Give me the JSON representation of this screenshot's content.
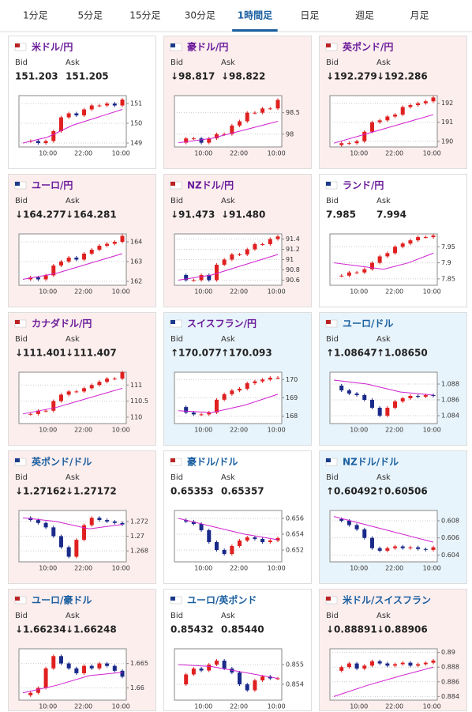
{
  "tabs": [
    "1分足",
    "5分足",
    "15分足",
    "30分足",
    "1時間足",
    "日足",
    "週足",
    "月足"
  ],
  "active_tab": 4,
  "bid_label": "Bid",
  "ask_label": "Ask",
  "time_labels": [
    "10:00",
    "22:00",
    "10:00"
  ],
  "cards": [
    {
      "name": "米ドル/円",
      "bid": "151.203",
      "ask": "151.205",
      "color": "#ffffff",
      "name_color": "#6a1b9a",
      "ylim": [
        148.8,
        151.4
      ],
      "yticks": [
        149,
        150,
        151
      ],
      "closes": [
        149.1,
        149.1,
        149.0,
        149.1,
        149.6,
        150.3,
        150.5,
        150.4,
        150.7,
        150.9,
        150.9,
        151.0,
        150.9,
        151.2
      ],
      "ma": [
        149.0,
        149.3,
        149.9,
        150.3,
        150.7
      ]
    },
    {
      "name": "豪ドル/円",
      "bid": "↓98.817",
      "ask": "↓98.822",
      "color": "#fdeeee",
      "name_color": "#6a1b9a",
      "ylim": [
        97.7,
        98.9
      ],
      "yticks": [
        98,
        98.5
      ],
      "closes": [
        97.8,
        97.9,
        97.9,
        97.8,
        97.9,
        98.0,
        98.0,
        98.2,
        98.3,
        98.5,
        98.5,
        98.6,
        98.6,
        98.8
      ],
      "ma": [
        97.8,
        97.9,
        98.1,
        98.3
      ]
    },
    {
      "name": "英ポンド/円",
      "bid": "↓192.279",
      "ask": "↓192.286",
      "color": "#fdeeee",
      "name_color": "#6a1b9a",
      "ylim": [
        189.7,
        192.4
      ],
      "yticks": [
        190,
        191,
        192
      ],
      "closes": [
        189.8,
        189.9,
        189.9,
        190.0,
        190.5,
        191.0,
        191.1,
        191.3,
        191.4,
        191.8,
        191.9,
        192.0,
        192.1,
        192.3
      ],
      "ma": [
        189.9,
        190.4,
        190.9,
        191.4
      ]
    },
    {
      "name": "ユーロ/円",
      "bid": "↓164.277",
      "ask": "↓164.281",
      "color": "#fdeeee",
      "name_color": "#6a1b9a",
      "ylim": [
        161.8,
        164.4
      ],
      "yticks": [
        162,
        163,
        164
      ],
      "closes": [
        162.1,
        162.2,
        162.1,
        162.3,
        162.8,
        163.0,
        163.2,
        163.1,
        163.4,
        163.6,
        163.8,
        163.9,
        164.0,
        164.3
      ],
      "ma": [
        162.1,
        162.4,
        162.9,
        163.4
      ]
    },
    {
      "name": "NZドル/円",
      "bid": "↓91.473",
      "ask": "↓91.480",
      "color": "#fdeeee",
      "name_color": "#6a1b9a",
      "ylim": [
        90.5,
        91.5
      ],
      "yticks": [
        90.6,
        90.8,
        91,
        91.2,
        91.4
      ],
      "closes": [
        90.7,
        90.6,
        90.6,
        90.7,
        90.6,
        90.9,
        91.0,
        91.1,
        91.1,
        91.2,
        91.3,
        91.3,
        91.4,
        91.45
      ],
      "ma": [
        90.6,
        90.7,
        90.9,
        91.1
      ]
    },
    {
      "name": "ランド/円",
      "bid": "7.985",
      "ask": "7.994",
      "color": "#ffffff",
      "name_color": "#6a1b9a",
      "ylim": [
        7.83,
        7.99
      ],
      "yticks": [
        7.85,
        7.9,
        7.95
      ],
      "closes": [
        7.86,
        7.86,
        7.87,
        7.87,
        7.88,
        7.9,
        7.92,
        7.93,
        7.95,
        7.96,
        7.97,
        7.98,
        7.98,
        7.985
      ],
      "ma": [
        7.9,
        7.89,
        7.88,
        7.9,
        7.93
      ]
    },
    {
      "name": "カナダドル/円",
      "bid": "↓111.401",
      "ask": "↓111.407",
      "color": "#fdeeee",
      "name_color": "#6a1b9a",
      "ylim": [
        109.8,
        111.4
      ],
      "yticks": [
        110,
        110.5,
        111
      ],
      "closes": [
        110.1,
        110.1,
        110.2,
        110.2,
        110.5,
        110.7,
        110.8,
        110.8,
        110.9,
        111.0,
        111.1,
        111.2,
        111.2,
        111.4
      ],
      "ma": [
        110.1,
        110.3,
        110.6,
        110.9
      ]
    },
    {
      "name": "スイスフラン/円",
      "bid": "↑170.077",
      "ask": "↑170.093",
      "color": "#e8f4fb",
      "name_color": "#6a1b9a",
      "ylim": [
        167.6,
        170.4
      ],
      "yticks": [
        168,
        169,
        170
      ],
      "closes": [
        168.5,
        168.2,
        168.1,
        168.1,
        168.2,
        168.9,
        169.2,
        169.4,
        169.5,
        169.8,
        169.9,
        170.0,
        170.1,
        170.1
      ],
      "ma": [
        168.3,
        168.2,
        168.6,
        169.2
      ]
    },
    {
      "name": "ユーロ/ドル",
      "bid": "↑1.08647",
      "ask": "↑1.08650",
      "color": "#e8f4fb",
      "name_color": "#1a5fa0",
      "ylim": [
        1.083,
        1.0895
      ],
      "yticks": [
        1.084,
        1.086,
        1.088
      ],
      "closes": [
        1.0878,
        1.0872,
        1.0868,
        1.0866,
        1.086,
        1.085,
        1.084,
        1.085,
        1.0858,
        1.0862,
        1.0865,
        1.0864,
        1.0866,
        1.0865
      ],
      "ma": [
        1.0885,
        1.088,
        1.087,
        1.0866
      ]
    },
    {
      "name": "英ポンド/ドル",
      "bid": "↓1.27162",
      "ask": "↓1.27172",
      "color": "#fdeeee",
      "name_color": "#1a5fa0",
      "ylim": [
        1.2665,
        1.2735
      ],
      "yticks": [
        1.268,
        1.27,
        1.272
      ],
      "closes": [
        1.2725,
        1.2722,
        1.2718,
        1.2712,
        1.27,
        1.2685,
        1.2672,
        1.2695,
        1.2715,
        1.2725,
        1.2722,
        1.272,
        1.2718,
        1.2716
      ],
      "ma": [
        1.2725,
        1.272,
        1.271,
        1.2716
      ]
    },
    {
      "name": "豪ドル/ドル",
      "bid": "0.65353",
      "ask": "0.65357",
      "color": "#ffffff",
      "name_color": "#1a5fa0",
      "ylim": [
        0.6505,
        0.657
      ],
      "yticks": [
        0.652,
        0.654,
        0.656
      ],
      "closes": [
        0.6558,
        0.6556,
        0.6553,
        0.6545,
        0.653,
        0.652,
        0.6515,
        0.6525,
        0.6532,
        0.6536,
        0.6534,
        0.653,
        0.6532,
        0.6535
      ],
      "ma": [
        0.656,
        0.655,
        0.654,
        0.6533
      ]
    },
    {
      "name": "NZドル/ドル",
      "bid": "↑0.60492",
      "ask": "↑0.60506",
      "color": "#e8f4fb",
      "name_color": "#1a5fa0",
      "ylim": [
        0.6032,
        0.6092
      ],
      "yticks": [
        0.604,
        0.606,
        0.608
      ],
      "closes": [
        0.6082,
        0.608,
        0.6075,
        0.607,
        0.606,
        0.6048,
        0.6045,
        0.6048,
        0.605,
        0.6048,
        0.6049,
        0.6047,
        0.6046,
        0.6049
      ],
      "ma": [
        0.6085,
        0.6075,
        0.6065,
        0.6055
      ]
    },
    {
      "name": "ユーロ/豪ドル",
      "bid": "↓1.66234",
      "ask": "↓1.66248",
      "color": "#fdeeee",
      "name_color": "#1a5fa0",
      "ylim": [
        1.6575,
        1.668
      ],
      "yticks": [
        1.66,
        1.665
      ],
      "closes": [
        1.6585,
        1.659,
        1.66,
        1.664,
        1.6665,
        1.665,
        1.664,
        1.663,
        1.6645,
        1.664,
        1.665,
        1.6645,
        1.6635,
        1.6623
      ],
      "ma": [
        1.659,
        1.6605,
        1.6625,
        1.6632
      ]
    },
    {
      "name": "ユーロ/英ポンド",
      "bid": "0.85432",
      "ask": "0.85440",
      "color": "#ffffff",
      "name_color": "#1a5fa0",
      "ylim": [
        0.8532,
        0.8558
      ],
      "yticks": [
        0.854,
        0.855
      ],
      "closes": [
        0.854,
        0.8545,
        0.8548,
        0.8547,
        0.855,
        0.8552,
        0.8548,
        0.8546,
        0.854,
        0.8537,
        0.8542,
        0.8544,
        0.8543,
        0.8543
      ],
      "ma": [
        0.855,
        0.8549,
        0.8546,
        0.8543
      ]
    },
    {
      "name": "米ドル/スイスフラン",
      "bid": "↓0.88891",
      "ask": "↓0.88906",
      "color": "#fdeeee",
      "name_color": "#1a5fa0",
      "ylim": [
        0.8835,
        0.8905
      ],
      "yticks": [
        0.884,
        0.886,
        0.888,
        0.89
      ],
      "closes": [
        0.8875,
        0.888,
        0.8885,
        0.8878,
        0.8882,
        0.8888,
        0.8885,
        0.8882,
        0.8884,
        0.8886,
        0.8882,
        0.8884,
        0.8886,
        0.8889
      ],
      "ma": [
        0.884,
        0.8855,
        0.8868,
        0.888
      ]
    }
  ]
}
